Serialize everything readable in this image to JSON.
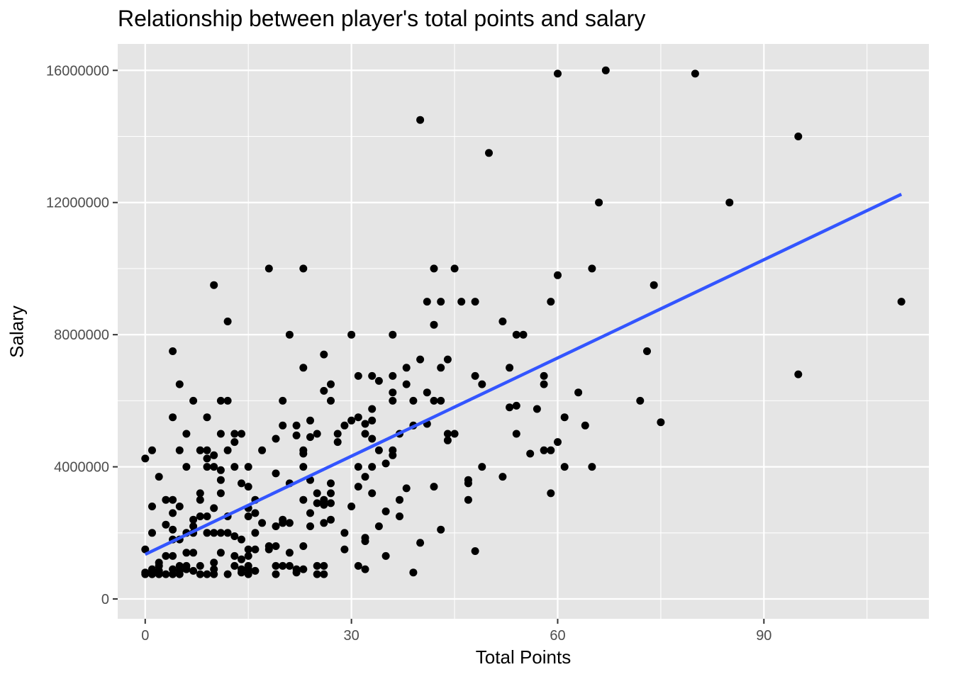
{
  "chart_data": {
    "type": "scatter",
    "title": "Relationship between player's total points and salary",
    "xlabel": "Total Points",
    "ylabel": "Salary",
    "xlim": [
      -4,
      114
    ],
    "ylim": [
      -600000,
      16800000
    ],
    "x_ticks": [
      0,
      30,
      60,
      90
    ],
    "y_ticks": [
      0,
      4000000,
      8000000,
      12000000,
      16000000
    ],
    "x_tick_labels": [
      "0",
      "30",
      "60",
      "90"
    ],
    "y_tick_labels": [
      "0",
      "4000000",
      "8000000",
      "12000000",
      "16000000"
    ],
    "grid": true,
    "panel_background": "#E5E5E5",
    "grid_color": "#FFFFFF",
    "point_color": "#000000",
    "trend_color": "#3355FF",
    "trend_line": {
      "x": [
        0,
        110
      ],
      "y": [
        1350000,
        12250000
      ]
    },
    "points": [
      [
        0,
        750000
      ],
      [
        0,
        800000
      ],
      [
        0,
        1500000
      ],
      [
        0,
        4250000
      ],
      [
        1,
        750000
      ],
      [
        1,
        800000
      ],
      [
        1,
        900000
      ],
      [
        1,
        2000000
      ],
      [
        1,
        2800000
      ],
      [
        1,
        4500000
      ],
      [
        2,
        750000
      ],
      [
        2,
        850000
      ],
      [
        2,
        1000000
      ],
      [
        2,
        1100000
      ],
      [
        2,
        3700000
      ],
      [
        3,
        750000
      ],
      [
        3,
        1300000
      ],
      [
        3,
        2250000
      ],
      [
        3,
        3000000
      ],
      [
        4,
        750000
      ],
      [
        4,
        900000
      ],
      [
        4,
        1300000
      ],
      [
        4,
        1800000
      ],
      [
        4,
        2100000
      ],
      [
        4,
        2600000
      ],
      [
        4,
        3000000
      ],
      [
        4,
        5500000
      ],
      [
        4,
        7500000
      ],
      [
        5,
        750000
      ],
      [
        5,
        850000
      ],
      [
        5,
        1000000
      ],
      [
        5,
        1800000
      ],
      [
        5,
        2800000
      ],
      [
        5,
        4500000
      ],
      [
        5,
        6500000
      ],
      [
        6,
        900000
      ],
      [
        6,
        1000000
      ],
      [
        6,
        1400000
      ],
      [
        6,
        2000000
      ],
      [
        6,
        4000000
      ],
      [
        6,
        5000000
      ],
      [
        7,
        850000
      ],
      [
        7,
        1400000
      ],
      [
        7,
        2000000
      ],
      [
        7,
        2200000
      ],
      [
        7,
        2400000
      ],
      [
        7,
        6000000
      ],
      [
        8,
        750000
      ],
      [
        8,
        1000000
      ],
      [
        8,
        2500000
      ],
      [
        8,
        3000000
      ],
      [
        8,
        3200000
      ],
      [
        8,
        4500000
      ],
      [
        9,
        750000
      ],
      [
        9,
        2000000
      ],
      [
        9,
        2500000
      ],
      [
        9,
        4000000
      ],
      [
        9,
        4250000
      ],
      [
        9,
        4500000
      ],
      [
        9,
        5500000
      ],
      [
        10,
        750000
      ],
      [
        10,
        900000
      ],
      [
        10,
        1100000
      ],
      [
        10,
        2000000
      ],
      [
        10,
        2750000
      ],
      [
        10,
        4000000
      ],
      [
        10,
        4350000
      ],
      [
        10,
        9500000
      ],
      [
        11,
        1400000
      ],
      [
        11,
        2000000
      ],
      [
        11,
        3200000
      ],
      [
        11,
        3600000
      ],
      [
        11,
        3900000
      ],
      [
        11,
        5000000
      ],
      [
        11,
        6000000
      ],
      [
        12,
        750000
      ],
      [
        12,
        2000000
      ],
      [
        12,
        2500000
      ],
      [
        12,
        4500000
      ],
      [
        12,
        6000000
      ],
      [
        12,
        8400000
      ],
      [
        13,
        1000000
      ],
      [
        13,
        1300000
      ],
      [
        13,
        1900000
      ],
      [
        13,
        4000000
      ],
      [
        13,
        4750000
      ],
      [
        13,
        5000000
      ],
      [
        14,
        800000
      ],
      [
        14,
        900000
      ],
      [
        14,
        1200000
      ],
      [
        14,
        1800000
      ],
      [
        14,
        3500000
      ],
      [
        14,
        5000000
      ],
      [
        15,
        750000
      ],
      [
        15,
        900000
      ],
      [
        15,
        1000000
      ],
      [
        15,
        1300000
      ],
      [
        15,
        1500000
      ],
      [
        15,
        2500000
      ],
      [
        15,
        2750000
      ],
      [
        15,
        3400000
      ],
      [
        15,
        4000000
      ],
      [
        16,
        850000
      ],
      [
        16,
        1500000
      ],
      [
        16,
        2000000
      ],
      [
        16,
        2600000
      ],
      [
        16,
        3000000
      ],
      [
        17,
        2300000
      ],
      [
        17,
        4500000
      ],
      [
        18,
        1500000
      ],
      [
        18,
        1600000
      ],
      [
        18,
        10000000
      ],
      [
        19,
        750000
      ],
      [
        19,
        1000000
      ],
      [
        19,
        1600000
      ],
      [
        19,
        2200000
      ],
      [
        19,
        3800000
      ],
      [
        19,
        4850000
      ],
      [
        20,
        1000000
      ],
      [
        20,
        2300000
      ],
      [
        20,
        2400000
      ],
      [
        20,
        5250000
      ],
      [
        20,
        6000000
      ],
      [
        21,
        1000000
      ],
      [
        21,
        1400000
      ],
      [
        21,
        2300000
      ],
      [
        21,
        3500000
      ],
      [
        21,
        8000000
      ],
      [
        22,
        800000
      ],
      [
        22,
        900000
      ],
      [
        22,
        4950000
      ],
      [
        22,
        5250000
      ],
      [
        23,
        900000
      ],
      [
        23,
        1600000
      ],
      [
        23,
        3000000
      ],
      [
        23,
        4000000
      ],
      [
        23,
        4400000
      ],
      [
        23,
        4500000
      ],
      [
        23,
        7000000
      ],
      [
        23,
        10000000
      ],
      [
        24,
        2200000
      ],
      [
        24,
        2600000
      ],
      [
        24,
        3600000
      ],
      [
        24,
        4900000
      ],
      [
        24,
        5400000
      ],
      [
        25,
        750000
      ],
      [
        25,
        1000000
      ],
      [
        25,
        2900000
      ],
      [
        25,
        3200000
      ],
      [
        25,
        5000000
      ],
      [
        26,
        750000
      ],
      [
        26,
        1000000
      ],
      [
        26,
        2300000
      ],
      [
        26,
        2850000
      ],
      [
        26,
        3000000
      ],
      [
        26,
        6300000
      ],
      [
        26,
        7400000
      ],
      [
        27,
        2400000
      ],
      [
        27,
        2900000
      ],
      [
        27,
        3200000
      ],
      [
        27,
        3500000
      ],
      [
        27,
        6000000
      ],
      [
        27,
        6500000
      ],
      [
        28,
        4750000
      ],
      [
        28,
        5000000
      ],
      [
        29,
        1500000
      ],
      [
        29,
        2000000
      ],
      [
        29,
        5250000
      ],
      [
        30,
        2800000
      ],
      [
        30,
        5400000
      ],
      [
        30,
        8000000
      ],
      [
        31,
        1000000
      ],
      [
        31,
        3400000
      ],
      [
        31,
        4000000
      ],
      [
        31,
        5500000
      ],
      [
        31,
        6750000
      ],
      [
        32,
        900000
      ],
      [
        32,
        1750000
      ],
      [
        32,
        1850000
      ],
      [
        32,
        3700000
      ],
      [
        32,
        5000000
      ],
      [
        32,
        5300000
      ],
      [
        33,
        3200000
      ],
      [
        33,
        4000000
      ],
      [
        33,
        4850000
      ],
      [
        33,
        5400000
      ],
      [
        33,
        5750000
      ],
      [
        33,
        6750000
      ],
      [
        34,
        2200000
      ],
      [
        34,
        4500000
      ],
      [
        34,
        6600000
      ],
      [
        35,
        1300000
      ],
      [
        35,
        2650000
      ],
      [
        35,
        4100000
      ],
      [
        36,
        4350000
      ],
      [
        36,
        4500000
      ],
      [
        36,
        6000000
      ],
      [
        36,
        6250000
      ],
      [
        36,
        6750000
      ],
      [
        36,
        8000000
      ],
      [
        37,
        2500000
      ],
      [
        37,
        3000000
      ],
      [
        37,
        5000000
      ],
      [
        38,
        3350000
      ],
      [
        38,
        6500000
      ],
      [
        38,
        7000000
      ],
      [
        39,
        800000
      ],
      [
        39,
        5250000
      ],
      [
        39,
        6000000
      ],
      [
        40,
        1700000
      ],
      [
        40,
        7250000
      ],
      [
        40,
        14500000
      ],
      [
        41,
        5300000
      ],
      [
        41,
        6250000
      ],
      [
        41,
        9000000
      ],
      [
        42,
        3400000
      ],
      [
        42,
        6000000
      ],
      [
        42,
        8300000
      ],
      [
        42,
        10000000
      ],
      [
        43,
        2100000
      ],
      [
        43,
        6000000
      ],
      [
        43,
        7000000
      ],
      [
        43,
        9000000
      ],
      [
        44,
        4800000
      ],
      [
        44,
        5000000
      ],
      [
        44,
        7250000
      ],
      [
        45,
        5000000
      ],
      [
        45,
        10000000
      ],
      [
        46,
        9000000
      ],
      [
        47,
        3000000
      ],
      [
        47,
        3500000
      ],
      [
        47,
        3600000
      ],
      [
        48,
        1450000
      ],
      [
        48,
        6750000
      ],
      [
        48,
        9000000
      ],
      [
        49,
        4000000
      ],
      [
        49,
        6500000
      ],
      [
        50,
        13500000
      ],
      [
        52,
        3700000
      ],
      [
        52,
        8400000
      ],
      [
        53,
        5800000
      ],
      [
        53,
        7000000
      ],
      [
        54,
        5000000
      ],
      [
        54,
        5850000
      ],
      [
        54,
        8000000
      ],
      [
        55,
        8000000
      ],
      [
        56,
        4400000
      ],
      [
        57,
        5750000
      ],
      [
        58,
        4500000
      ],
      [
        58,
        6500000
      ],
      [
        58,
        6750000
      ],
      [
        59,
        3200000
      ],
      [
        59,
        4500000
      ],
      [
        59,
        9000000
      ],
      [
        60,
        4750000
      ],
      [
        60,
        9800000
      ],
      [
        60,
        15900000
      ],
      [
        61,
        4000000
      ],
      [
        61,
        5500000
      ],
      [
        63,
        6250000
      ],
      [
        64,
        5250000
      ],
      [
        65,
        4000000
      ],
      [
        65,
        10000000
      ],
      [
        66,
        12000000
      ],
      [
        67,
        16000000
      ],
      [
        72,
        6000000
      ],
      [
        73,
        7500000
      ],
      [
        74,
        9500000
      ],
      [
        75,
        5350000
      ],
      [
        80,
        15900000
      ],
      [
        85,
        12000000
      ],
      [
        95,
        6800000
      ],
      [
        95,
        14000000
      ],
      [
        110,
        9000000
      ]
    ]
  }
}
